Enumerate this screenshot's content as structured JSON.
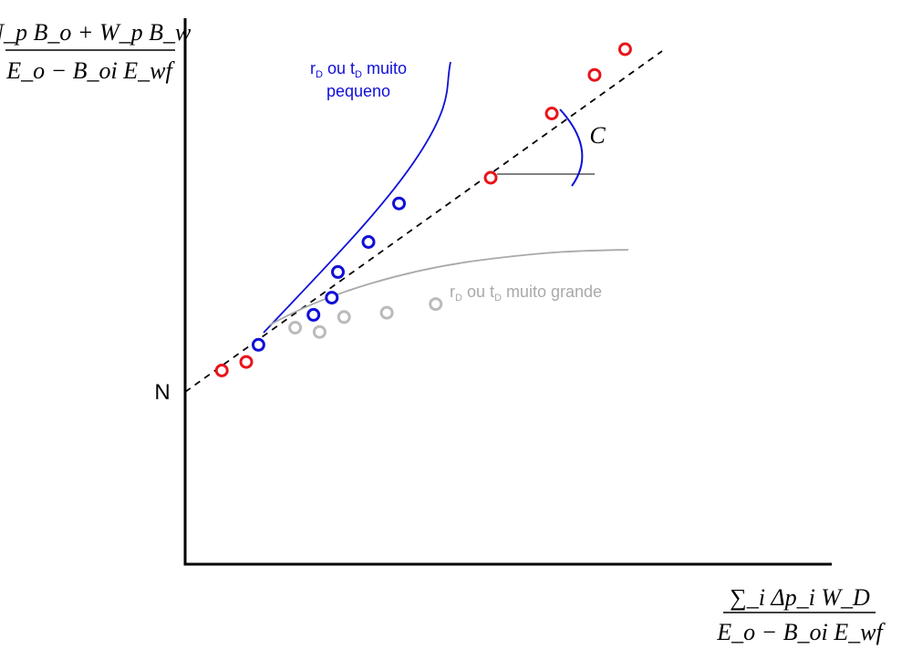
{
  "chart_data": {
    "type": "scatter",
    "title": "",
    "ylabel": {
      "numerator": "N_p B_o + W_p B_w",
      "denominator": "E_o − B_oi E_wf"
    },
    "xlabel": {
      "numerator": "∑_i Δp_i W_D",
      "denominator": "E_o − B_oi E_wf"
    },
    "y_intercept_label": "N",
    "slope_label": "C",
    "grid": false,
    "colors": {
      "correct": "#e8141b",
      "small": "#1010d8",
      "large": "#bbbbbb",
      "axis": "#000000"
    },
    "series": [
      {
        "name": "",
        "color": "#e8141b",
        "points": [
          [
            0.6,
            0.5
          ],
          [
            1.0,
            0.7
          ],
          [
            5.0,
            5.0
          ],
          [
            6.0,
            6.5
          ],
          [
            6.7,
            7.4
          ],
          [
            7.2,
            8.0
          ]
        ]
      },
      {
        "name": "rD ou tD muito pequeno",
        "color": "#1010d8",
        "points": [
          [
            1.2,
            1.1
          ],
          [
            2.1,
            1.8
          ],
          [
            2.4,
            2.2
          ],
          [
            2.5,
            2.8
          ],
          [
            3.0,
            3.5
          ],
          [
            3.5,
            4.4
          ]
        ]
      },
      {
        "name": "rD ou tD muito grande",
        "color": "#bbbbbb",
        "points": [
          [
            1.8,
            1.5
          ],
          [
            2.2,
            1.4
          ],
          [
            2.6,
            1.75
          ],
          [
            3.3,
            1.85
          ],
          [
            4.1,
            2.05
          ]
        ]
      }
    ],
    "annotations": {
      "small": {
        "prefix1": "r",
        "sub1": "D",
        "mid": " ou t",
        "sub2": "D",
        "line1_rest": " muito",
        "line2": "pequeno"
      },
      "large": {
        "prefix1": "r",
        "sub1": "D",
        "mid": " ou t",
        "sub2": "D",
        "rest": " muito grande"
      }
    }
  }
}
